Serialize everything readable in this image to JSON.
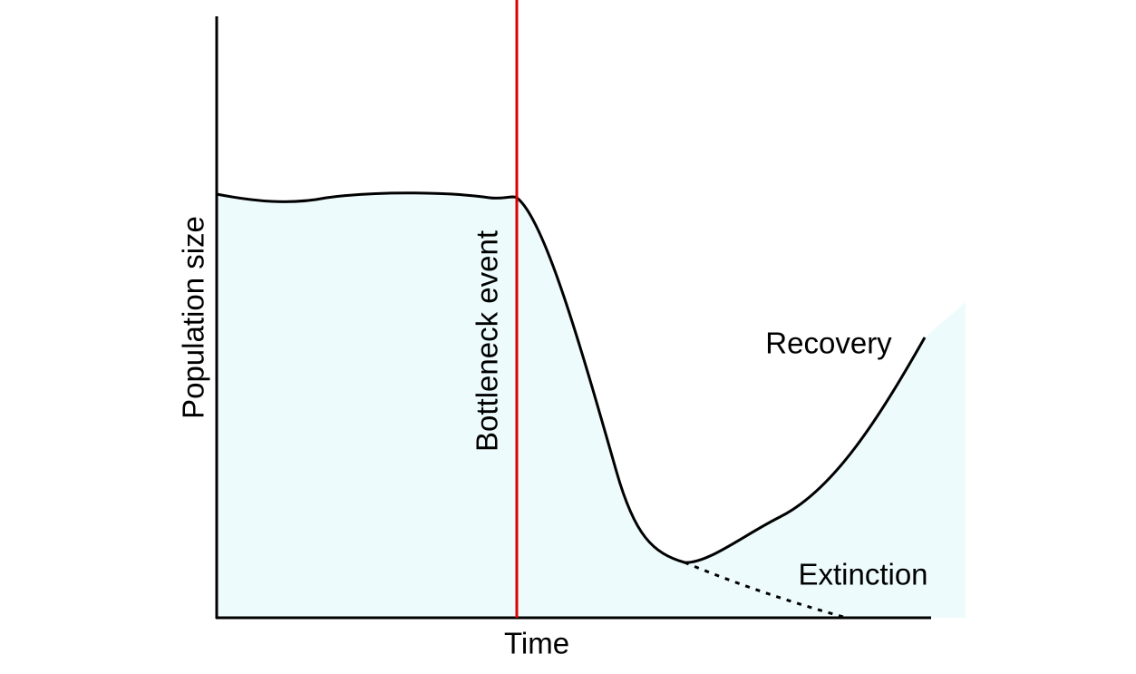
{
  "axes": {
    "y_label": "Population size",
    "x_label": "Time"
  },
  "annotations": {
    "event": "Bottleneck event",
    "recovery": "Recovery",
    "extinction": "Extinction"
  }
}
